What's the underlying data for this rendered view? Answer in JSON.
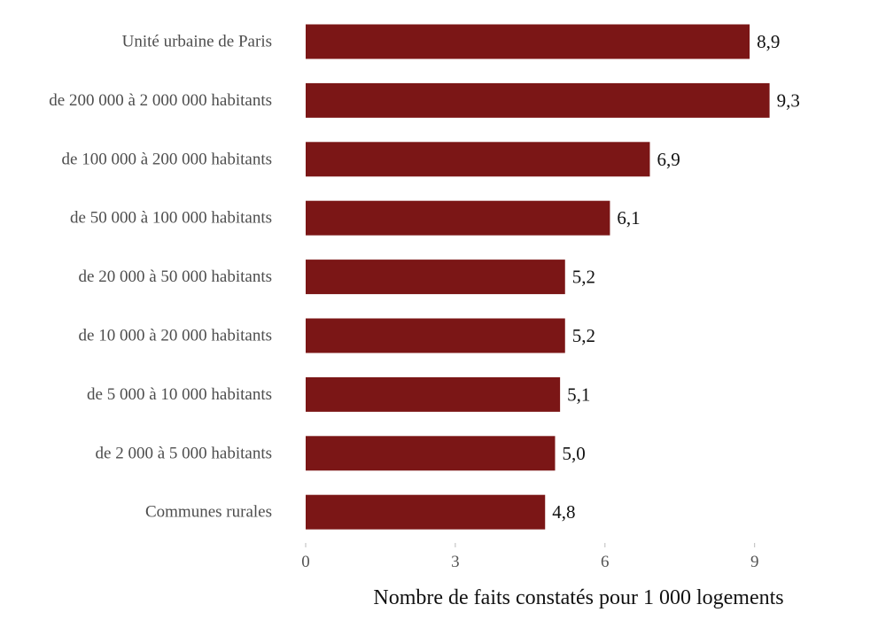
{
  "chart_data": {
    "type": "bar",
    "orientation": "horizontal",
    "categories": [
      "Unité urbaine de Paris",
      "de 200 000 à 2 000 000 habitants",
      "de 100 000 à 200 000 habitants",
      "de 50 000 à 100 000 habitants",
      "de 20 000 à 50 000 habitants",
      "de 10 000 à 20 000 habitants",
      "de 5 000 à 10 000 habitants",
      "de 2 000 à 5 000 habitants",
      "Communes rurales"
    ],
    "values": [
      8.9,
      9.3,
      6.9,
      6.1,
      5.2,
      5.2,
      5.1,
      5.0,
      4.8
    ],
    "value_labels": [
      "8,9",
      "9,3",
      "6,9",
      "6,1",
      "5,2",
      "5,2",
      "5,1",
      "5,0",
      "4,8"
    ],
    "xlabel": "Nombre de faits constatés pour 1 000 logements",
    "ylabel": "",
    "xticks": [
      0,
      3,
      6,
      9
    ],
    "xtick_labels": [
      "0",
      "3",
      "6",
      "9"
    ],
    "xlim": [
      0,
      10.2
    ],
    "grid": false,
    "legend": "none",
    "bar_color": "#7b1616"
  }
}
